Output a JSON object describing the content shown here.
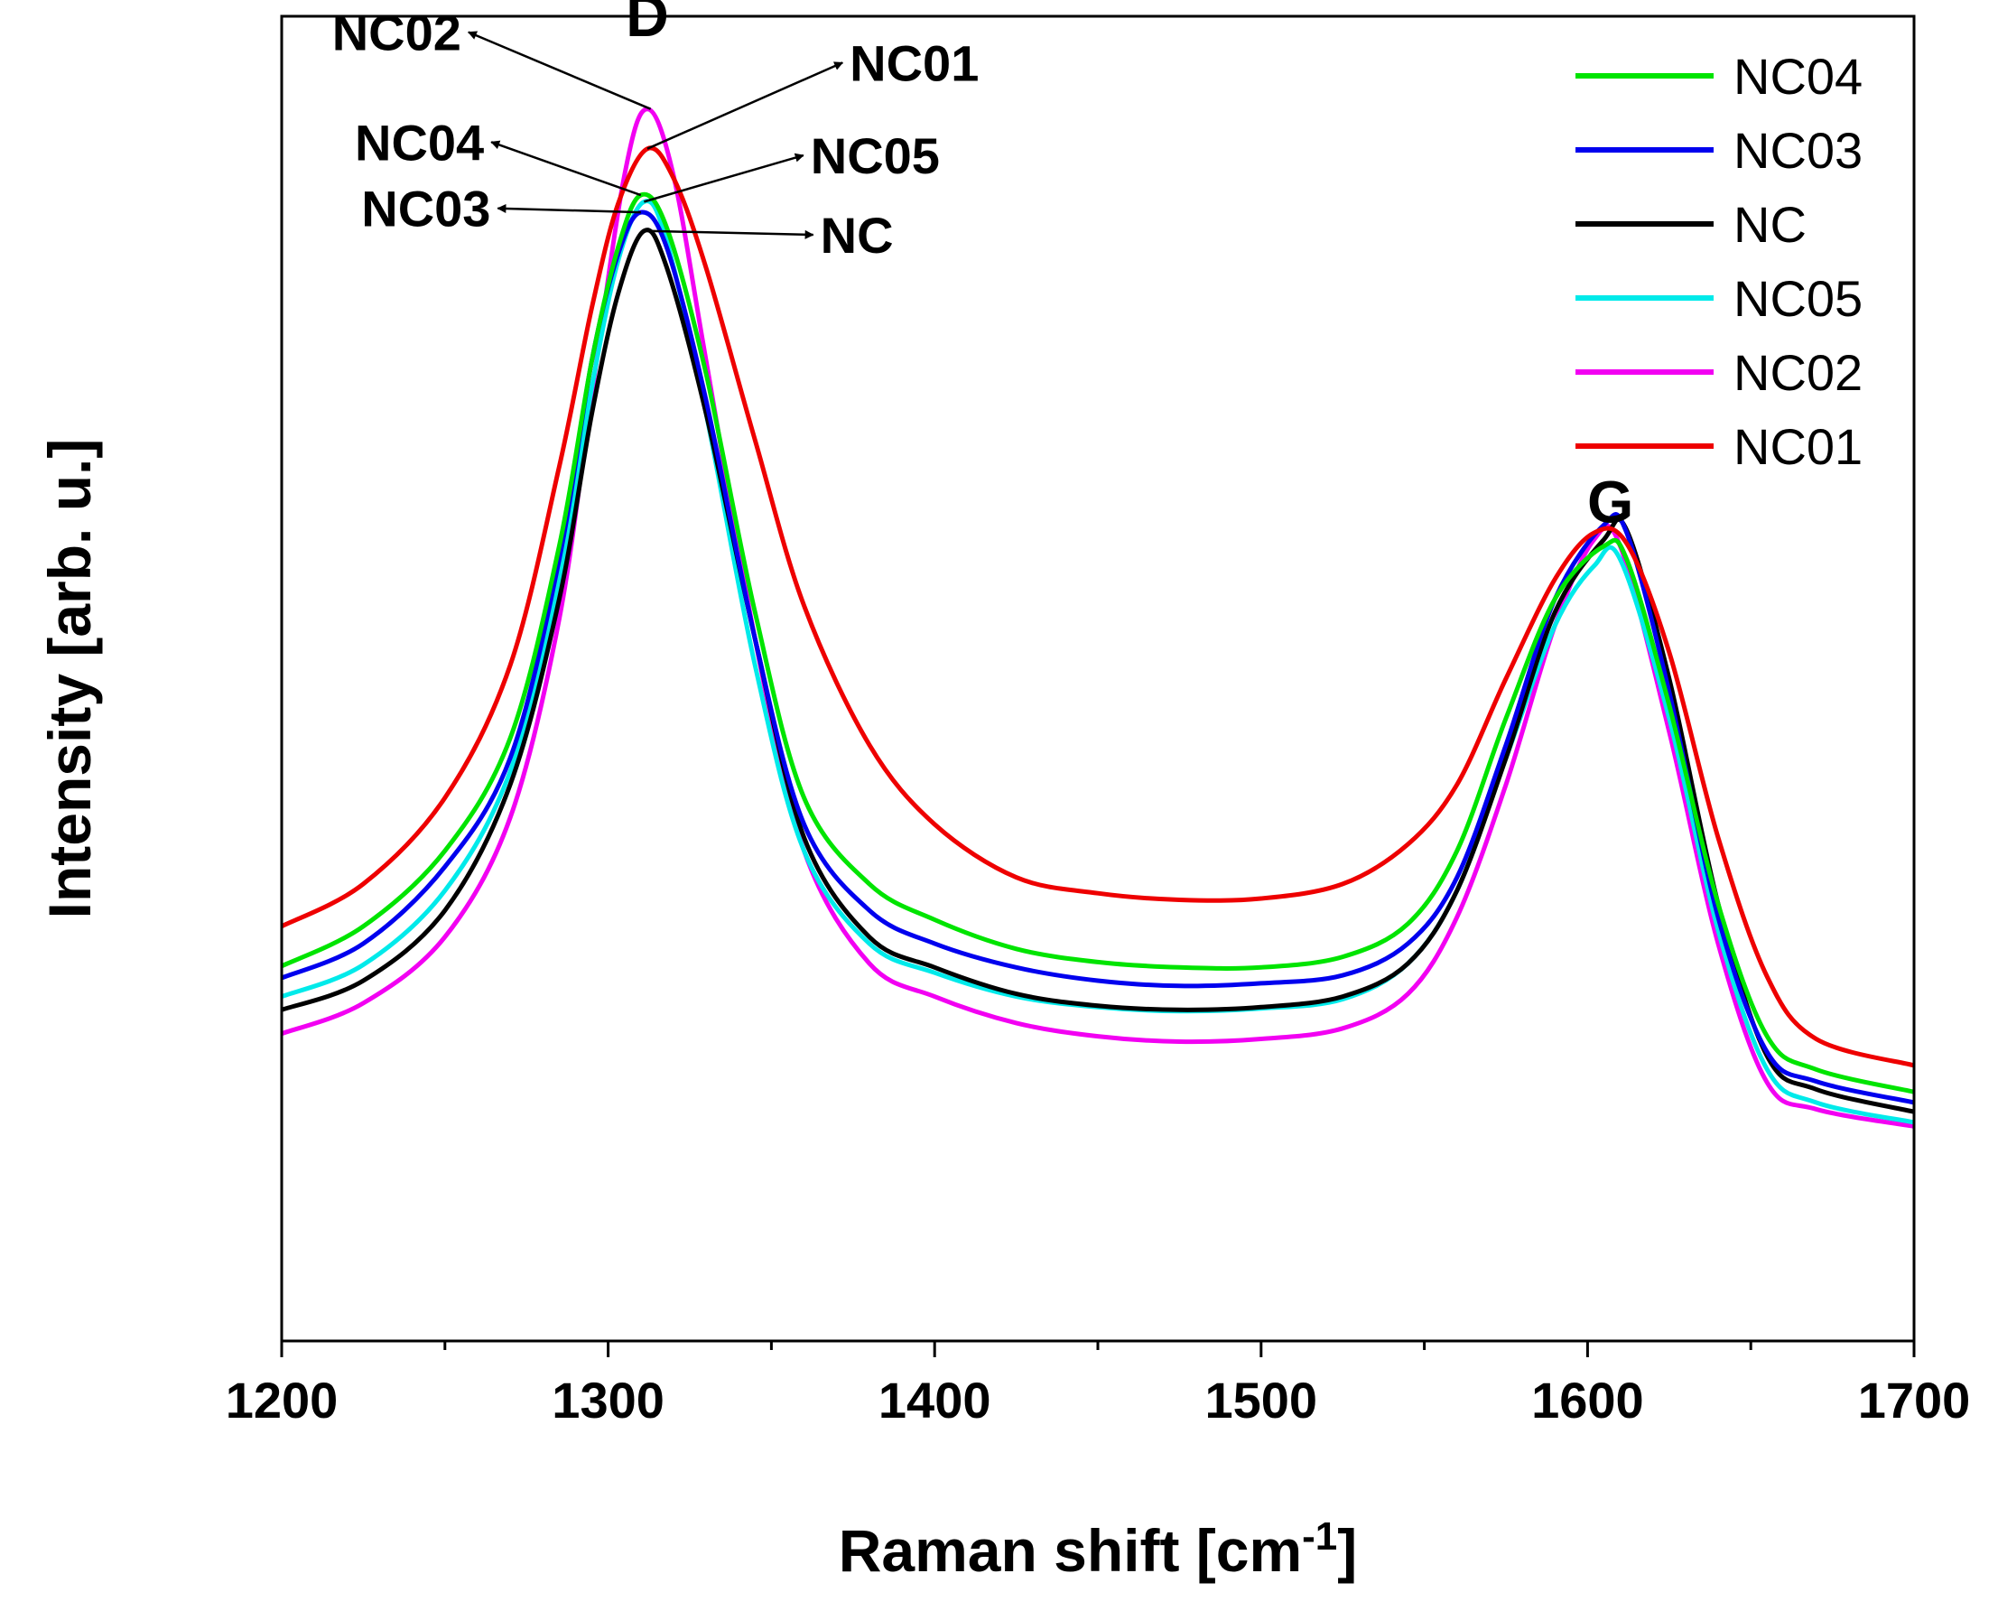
{
  "chart_data": {
    "type": "line",
    "xlabel": "Raman shift [cm",
    "xlabel_sup": "-1",
    "xlabel_end": "]",
    "ylabel": "Intensity [arb. u.]",
    "xlim": [
      1200,
      1700
    ],
    "ylim": [
      0,
      1
    ],
    "x_ticks": [
      "1200",
      "1300",
      "1400",
      "1500",
      "1600",
      "1700"
    ],
    "y_ticks": "none",
    "grid": false,
    "legend_position": "top-right",
    "peak_labels": [
      {
        "text": "D",
        "x": 1312,
        "y": 0.985
      },
      {
        "text": "G",
        "x": 1607,
        "y": 0.618
      }
    ],
    "series": [
      {
        "name": "NC04",
        "color": "#00e400",
        "points": [
          [
            1200,
            0.283
          ],
          [
            1225,
            0.313
          ],
          [
            1250,
            0.37
          ],
          [
            1270,
            0.455
          ],
          [
            1285,
            0.6
          ],
          [
            1295,
            0.74
          ],
          [
            1303,
            0.825
          ],
          [
            1310,
            0.865
          ],
          [
            1318,
            0.84
          ],
          [
            1330,
            0.73
          ],
          [
            1345,
            0.55
          ],
          [
            1360,
            0.41
          ],
          [
            1380,
            0.345
          ],
          [
            1400,
            0.318
          ],
          [
            1425,
            0.296
          ],
          [
            1450,
            0.286
          ],
          [
            1475,
            0.282
          ],
          [
            1500,
            0.282
          ],
          [
            1525,
            0.29
          ],
          [
            1545,
            0.315
          ],
          [
            1560,
            0.37
          ],
          [
            1575,
            0.47
          ],
          [
            1590,
            0.56
          ],
          [
            1605,
            0.6
          ],
          [
            1612,
            0.59
          ],
          [
            1625,
            0.48
          ],
          [
            1640,
            0.33
          ],
          [
            1655,
            0.23
          ],
          [
            1670,
            0.205
          ],
          [
            1700,
            0.188
          ]
        ]
      },
      {
        "name": "NC03",
        "color": "#0000ee",
        "points": [
          [
            1200,
            0.274
          ],
          [
            1225,
            0.3
          ],
          [
            1250,
            0.358
          ],
          [
            1270,
            0.44
          ],
          [
            1285,
            0.59
          ],
          [
            1295,
            0.74
          ],
          [
            1303,
            0.82
          ],
          [
            1310,
            0.852
          ],
          [
            1318,
            0.825
          ],
          [
            1330,
            0.71
          ],
          [
            1345,
            0.53
          ],
          [
            1360,
            0.39
          ],
          [
            1380,
            0.325
          ],
          [
            1400,
            0.3
          ],
          [
            1425,
            0.282
          ],
          [
            1450,
            0.272
          ],
          [
            1475,
            0.268
          ],
          [
            1500,
            0.27
          ],
          [
            1525,
            0.276
          ],
          [
            1545,
            0.3
          ],
          [
            1560,
            0.35
          ],
          [
            1575,
            0.45
          ],
          [
            1590,
            0.56
          ],
          [
            1605,
            0.616
          ],
          [
            1612,
            0.61
          ],
          [
            1625,
            0.49
          ],
          [
            1640,
            0.32
          ],
          [
            1655,
            0.218
          ],
          [
            1670,
            0.196
          ],
          [
            1700,
            0.18
          ]
        ]
      },
      {
        "name": "NC",
        "color": "#000000",
        "points": [
          [
            1200,
            0.25
          ],
          [
            1225,
            0.272
          ],
          [
            1250,
            0.325
          ],
          [
            1270,
            0.42
          ],
          [
            1285,
            0.56
          ],
          [
            1295,
            0.7
          ],
          [
            1303,
            0.79
          ],
          [
            1311,
            0.838
          ],
          [
            1318,
            0.81
          ],
          [
            1330,
            0.7
          ],
          [
            1345,
            0.53
          ],
          [
            1360,
            0.38
          ],
          [
            1380,
            0.305
          ],
          [
            1400,
            0.282
          ],
          [
            1425,
            0.262
          ],
          [
            1450,
            0.253
          ],
          [
            1475,
            0.25
          ],
          [
            1500,
            0.252
          ],
          [
            1525,
            0.26
          ],
          [
            1545,
            0.285
          ],
          [
            1560,
            0.34
          ],
          [
            1575,
            0.44
          ],
          [
            1590,
            0.55
          ],
          [
            1605,
            0.605
          ],
          [
            1612,
            0.612
          ],
          [
            1625,
            0.5
          ],
          [
            1640,
            0.33
          ],
          [
            1655,
            0.215
          ],
          [
            1670,
            0.19
          ],
          [
            1700,
            0.173
          ]
        ]
      },
      {
        "name": "NC05",
        "color": "#00eaea",
        "points": [
          [
            1200,
            0.26
          ],
          [
            1225,
            0.284
          ],
          [
            1250,
            0.34
          ],
          [
            1270,
            0.43
          ],
          [
            1285,
            0.575
          ],
          [
            1295,
            0.72
          ],
          [
            1303,
            0.815
          ],
          [
            1311,
            0.86
          ],
          [
            1318,
            0.83
          ],
          [
            1330,
            0.7
          ],
          [
            1345,
            0.51
          ],
          [
            1360,
            0.37
          ],
          [
            1380,
            0.3
          ],
          [
            1400,
            0.278
          ],
          [
            1425,
            0.26
          ],
          [
            1450,
            0.252
          ],
          [
            1475,
            0.249
          ],
          [
            1500,
            0.251
          ],
          [
            1525,
            0.258
          ],
          [
            1545,
            0.285
          ],
          [
            1560,
            0.34
          ],
          [
            1575,
            0.44
          ],
          [
            1590,
            0.54
          ],
          [
            1602,
            0.585
          ],
          [
            1610,
            0.59
          ],
          [
            1625,
            0.47
          ],
          [
            1640,
            0.31
          ],
          [
            1655,
            0.205
          ],
          [
            1670,
            0.18
          ],
          [
            1700,
            0.165
          ]
        ]
      },
      {
        "name": "NC02",
        "color": "#f200f2",
        "points": [
          [
            1200,
            0.232
          ],
          [
            1225,
            0.255
          ],
          [
            1250,
            0.305
          ],
          [
            1270,
            0.395
          ],
          [
            1285,
            0.545
          ],
          [
            1295,
            0.715
          ],
          [
            1305,
            0.88
          ],
          [
            1312,
            0.93
          ],
          [
            1320,
            0.88
          ],
          [
            1330,
            0.74
          ],
          [
            1345,
            0.53
          ],
          [
            1360,
            0.37
          ],
          [
            1380,
            0.285
          ],
          [
            1400,
            0.26
          ],
          [
            1425,
            0.24
          ],
          [
            1450,
            0.23
          ],
          [
            1475,
            0.226
          ],
          [
            1500,
            0.228
          ],
          [
            1525,
            0.236
          ],
          [
            1545,
            0.262
          ],
          [
            1560,
            0.32
          ],
          [
            1575,
            0.42
          ],
          [
            1590,
            0.54
          ],
          [
            1602,
            0.605
          ],
          [
            1610,
            0.6
          ],
          [
            1625,
            0.46
          ],
          [
            1640,
            0.3
          ],
          [
            1655,
            0.195
          ],
          [
            1670,
            0.175
          ],
          [
            1700,
            0.162
          ]
        ]
      },
      {
        "name": "NC01",
        "color": "#ee0000",
        "points": [
          [
            1200,
            0.313
          ],
          [
            1225,
            0.345
          ],
          [
            1250,
            0.41
          ],
          [
            1270,
            0.51
          ],
          [
            1285,
            0.66
          ],
          [
            1295,
            0.78
          ],
          [
            1303,
            0.858
          ],
          [
            1312,
            0.9
          ],
          [
            1320,
            0.878
          ],
          [
            1330,
            0.81
          ],
          [
            1345,
            0.68
          ],
          [
            1360,
            0.555
          ],
          [
            1380,
            0.45
          ],
          [
            1400,
            0.39
          ],
          [
            1425,
            0.35
          ],
          [
            1450,
            0.338
          ],
          [
            1475,
            0.333
          ],
          [
            1500,
            0.334
          ],
          [
            1525,
            0.345
          ],
          [
            1545,
            0.375
          ],
          [
            1560,
            0.42
          ],
          [
            1575,
            0.5
          ],
          [
            1590,
            0.575
          ],
          [
            1602,
            0.61
          ],
          [
            1612,
            0.602
          ],
          [
            1625,
            0.52
          ],
          [
            1640,
            0.38
          ],
          [
            1655,
            0.275
          ],
          [
            1670,
            0.228
          ],
          [
            1700,
            0.208
          ]
        ]
      }
    ],
    "annotations": [
      {
        "text": "NC02",
        "series": "NC02",
        "side": "left",
        "tip": [
          1313,
          0.93
        ],
        "label_at": [
          1255,
          0.988
        ]
      },
      {
        "text": "NC01",
        "series": "NC01",
        "side": "right",
        "tip": [
          1312,
          0.9
        ],
        "label_at": [
          1374,
          0.965
        ]
      },
      {
        "text": "NC04",
        "series": "NC04",
        "side": "left",
        "tip": [
          1310,
          0.865
        ],
        "label_at": [
          1262,
          0.905
        ]
      },
      {
        "text": "NC05",
        "series": "NC05",
        "side": "right",
        "tip": [
          1311,
          0.86
        ],
        "label_at": [
          1362,
          0.895
        ]
      },
      {
        "text": "NC03",
        "series": "NC03",
        "side": "left",
        "tip": [
          1310,
          0.852
        ],
        "label_at": [
          1264,
          0.855
        ]
      },
      {
        "text": "NC",
        "series": "NC",
        "side": "right",
        "tip": [
          1311,
          0.838
        ],
        "label_at": [
          1365,
          0.835
        ]
      }
    ]
  }
}
